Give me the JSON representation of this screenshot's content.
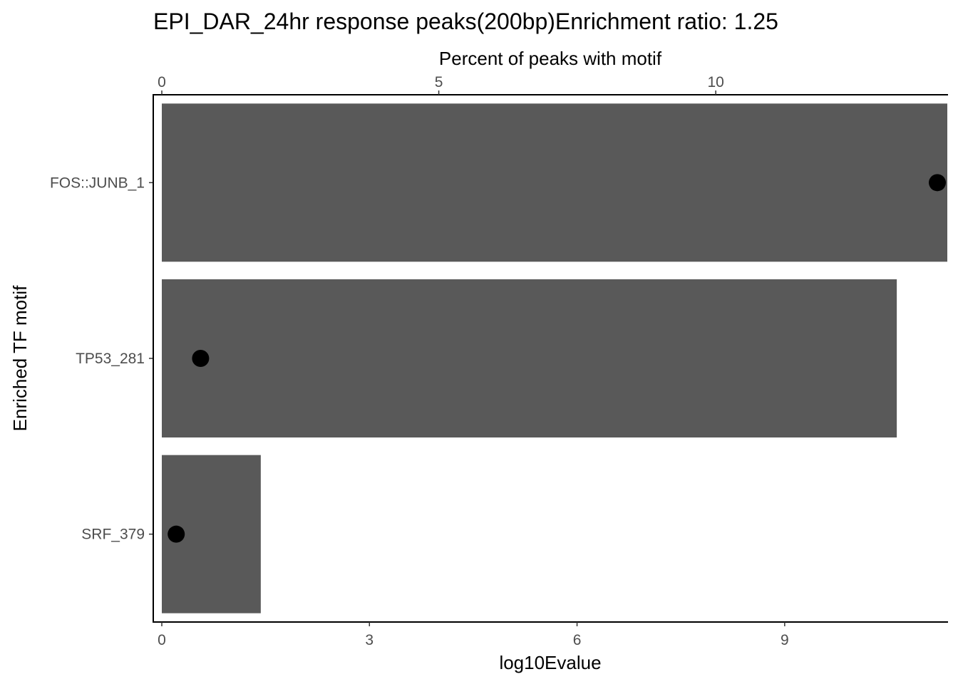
{
  "chart_data": {
    "type": "bar",
    "title": "EPI_DAR_24hr response peaks(200bp)Enrichment ratio: 1.25",
    "ylabel": "Enriched TF motif",
    "xlabel": "log10Evalue",
    "x2label": "Percent of peaks with motif",
    "categories": [
      "FOS::JUNB_1",
      "TP53_281",
      "SRF_379"
    ],
    "series": [
      {
        "values": [
          11.35,
          10.62,
          1.43
        ]
      },
      {
        "values": [
          14.0,
          0.7,
          0.26
        ]
      }
    ],
    "xlim": [
      0,
      11.35
    ],
    "x2lim": [
      0,
      14.18
    ],
    "xticks": [
      0,
      3,
      6,
      9
    ],
    "x2ticks": [
      0,
      5,
      10
    ],
    "bar_color": "#595959",
    "point_color": "#000000",
    "grid": false
  }
}
